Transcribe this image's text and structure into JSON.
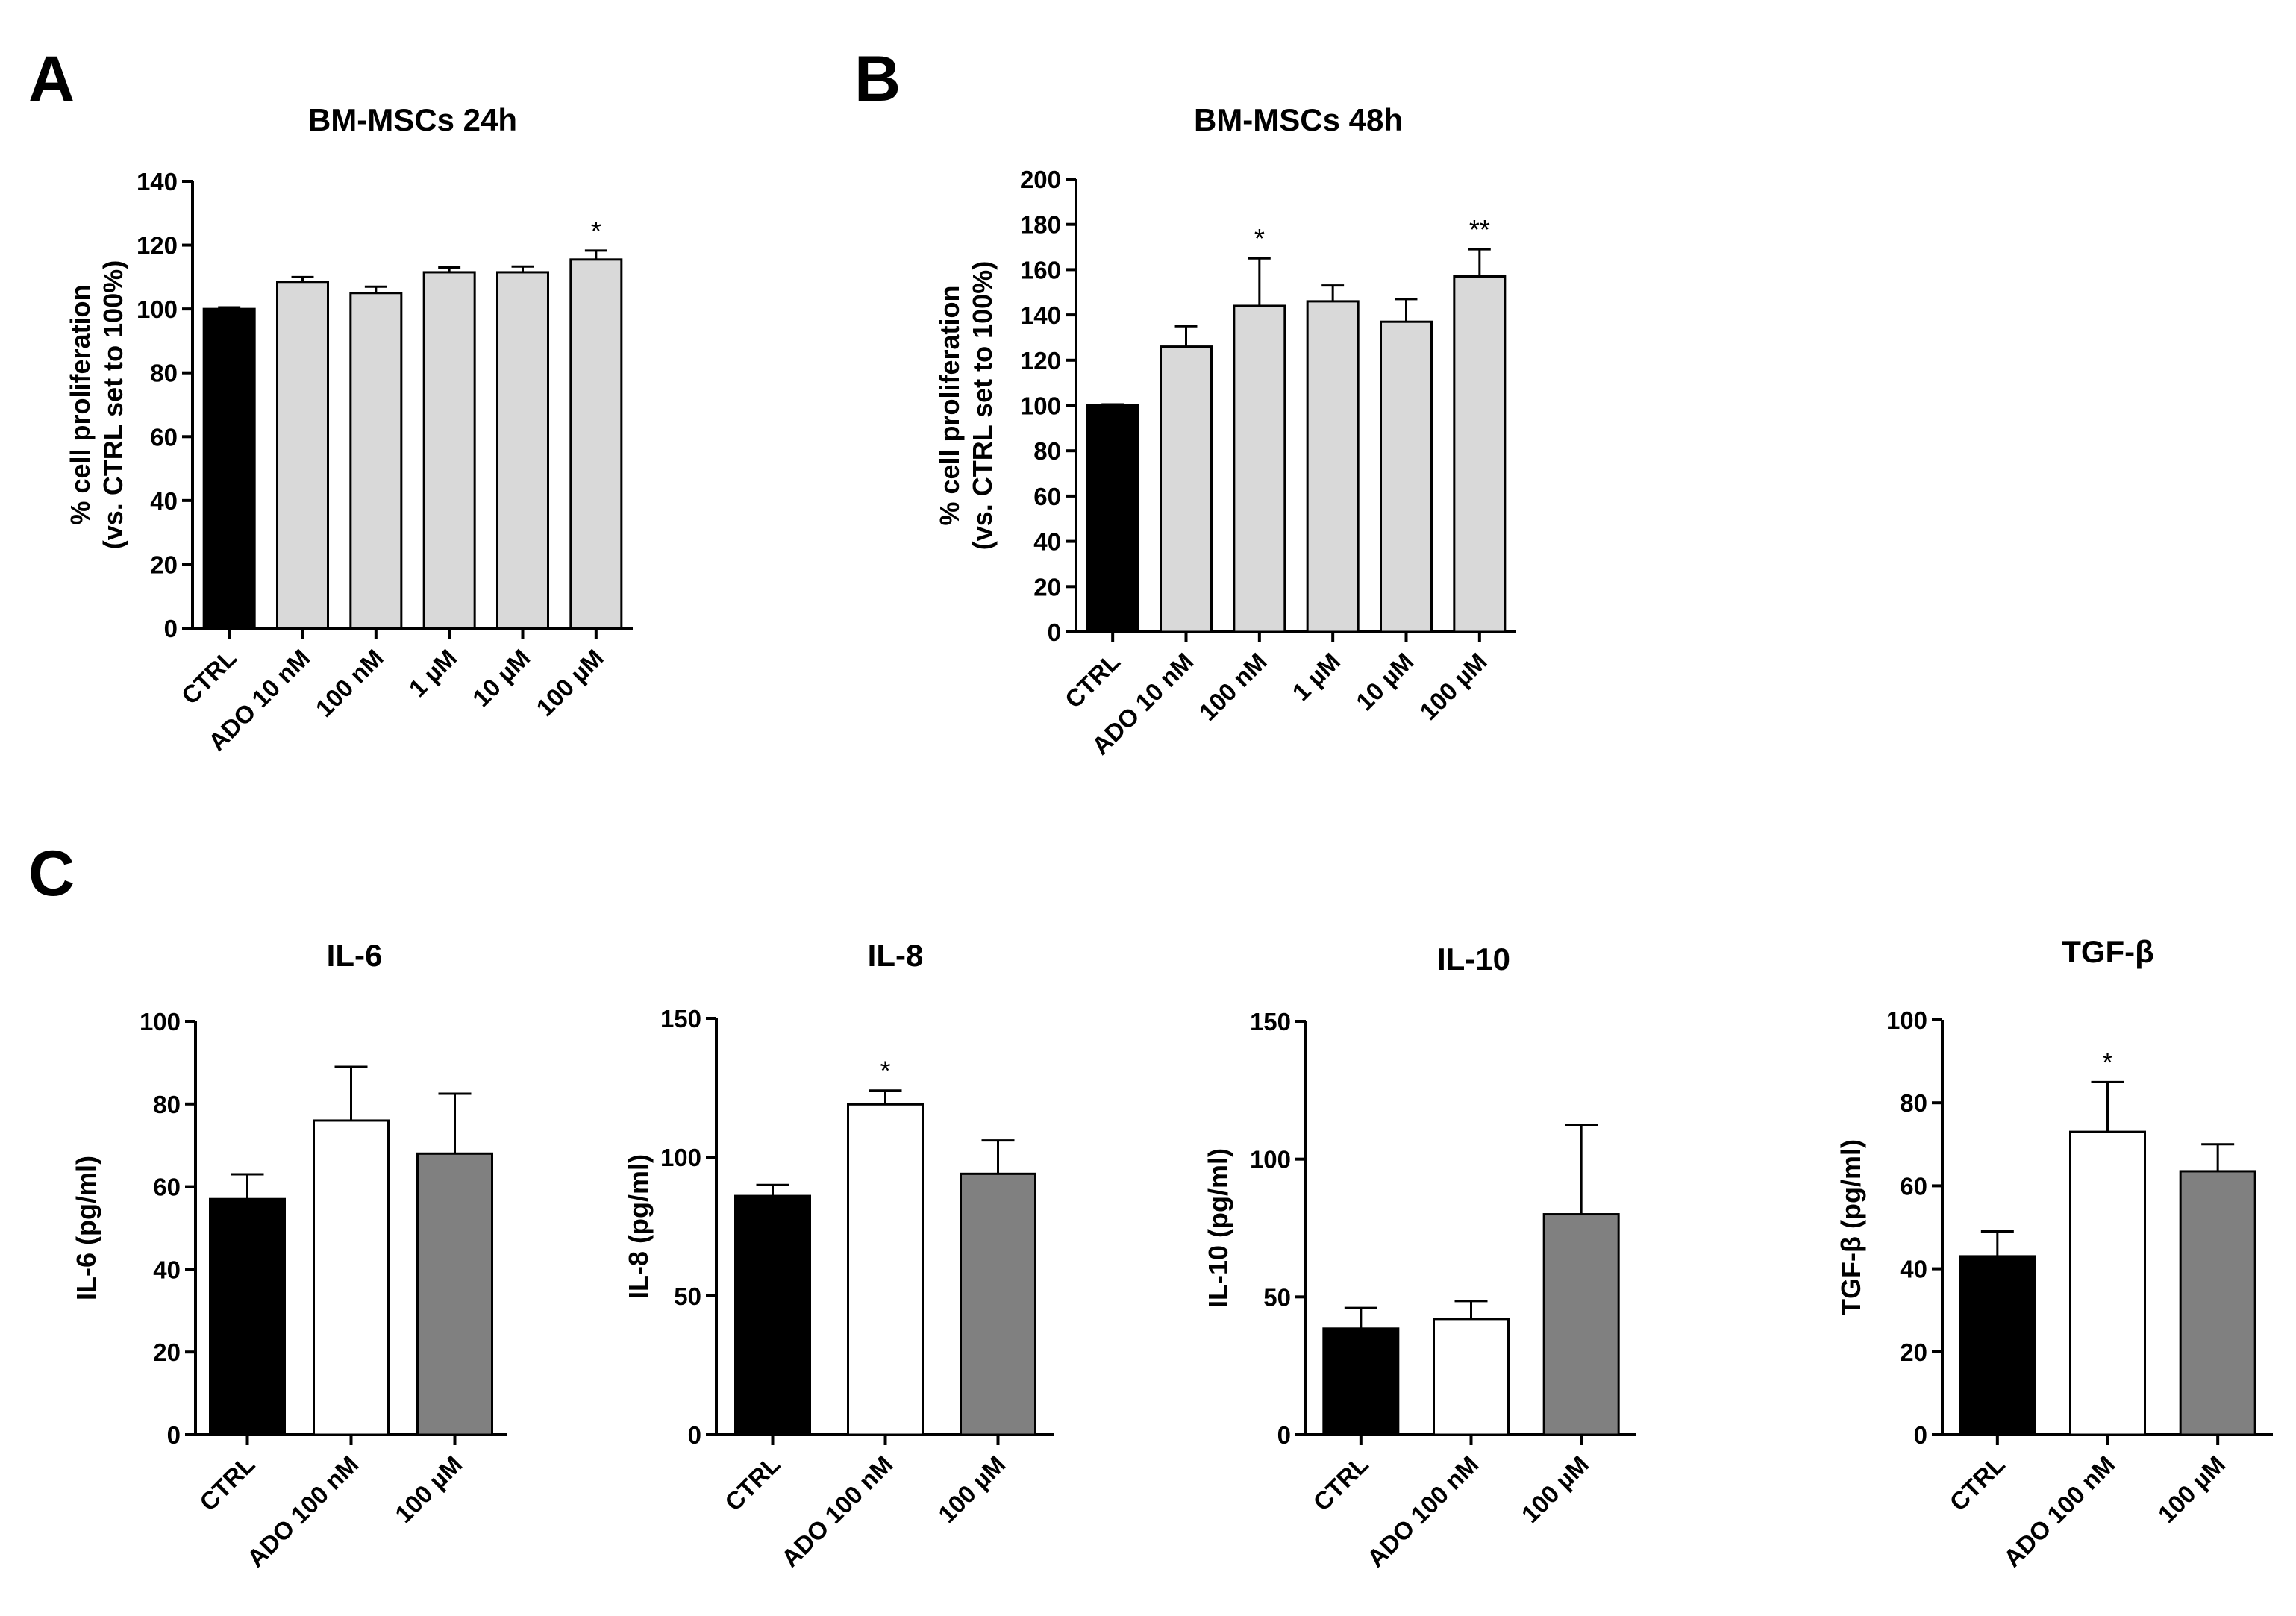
{
  "panel_labels": [
    "A",
    "B",
    "C"
  ],
  "chart_data": [
    {
      "id": "A",
      "type": "bar",
      "title": "BM-MSCs  24h",
      "ylabel_lines": [
        "% cell proliferation",
        "(vs. CTRL set to 100%)"
      ],
      "xlabel": "",
      "ylim": [
        0,
        140
      ],
      "yticks": [
        0,
        20,
        40,
        60,
        80,
        100,
        120,
        140
      ],
      "categories": [
        "CTRL",
        "ADO 10 nM",
        "100 nM",
        "1 µM",
        "10 µM",
        "100 µM"
      ],
      "values": [
        100,
        108.5,
        105,
        111.5,
        111.5,
        115.5
      ],
      "errors": [
        0.5,
        1.5,
        2.0,
        1.5,
        1.8,
        2.8
      ],
      "significance": [
        "",
        "",
        "",
        "",
        "",
        "*"
      ],
      "colors": [
        "#000000",
        "#d9d9d9",
        "#d9d9d9",
        "#d9d9d9",
        "#d9d9d9",
        "#d9d9d9"
      ]
    },
    {
      "id": "B",
      "type": "bar",
      "title": "BM-MSCs 48h",
      "ylabel_lines": [
        "% cell proliferation",
        "(vs. CTRL set to 100%)"
      ],
      "xlabel": "",
      "ylim": [
        0,
        200
      ],
      "yticks": [
        0,
        20,
        40,
        60,
        80,
        100,
        120,
        140,
        160,
        180,
        200
      ],
      "categories": [
        "CTRL",
        "ADO 10 nM",
        "100 nM",
        "1 µM",
        "10 µM",
        "100 µM"
      ],
      "values": [
        100,
        126,
        144,
        146,
        137,
        157
      ],
      "errors": [
        0.5,
        9,
        21,
        7,
        10,
        12
      ],
      "significance": [
        "",
        "",
        "*",
        "",
        "",
        "**"
      ],
      "colors": [
        "#000000",
        "#d9d9d9",
        "#d9d9d9",
        "#d9d9d9",
        "#d9d9d9",
        "#d9d9d9"
      ]
    },
    {
      "id": "IL-6",
      "type": "bar",
      "title": "IL-6",
      "ylabel_lines": [
        "IL-6 (pg/ml)"
      ],
      "xlabel": "",
      "ylim": [
        0,
        100
      ],
      "yticks": [
        0,
        20,
        40,
        60,
        80,
        100
      ],
      "categories": [
        "CTRL",
        "ADO 100 nM",
        "100 µM"
      ],
      "values": [
        57,
        76,
        68
      ],
      "errors": [
        6,
        13,
        14.5
      ],
      "significance": [
        "",
        "",
        ""
      ],
      "colors": [
        "#000000",
        "#ffffff",
        "#808080"
      ]
    },
    {
      "id": "IL-8",
      "type": "bar",
      "title": "IL-8",
      "ylabel_lines": [
        "IL-8 (pg/ml)"
      ],
      "xlabel": "",
      "ylim": [
        0,
        150
      ],
      "yticks": [
        0,
        50,
        100,
        150
      ],
      "categories": [
        "CTRL",
        "ADO 100 nM",
        "100 µM"
      ],
      "values": [
        86,
        119,
        94
      ],
      "errors": [
        4,
        5,
        12
      ],
      "significance": [
        "",
        "*",
        ""
      ],
      "colors": [
        "#000000",
        "#ffffff",
        "#808080"
      ]
    },
    {
      "id": "IL-10",
      "type": "bar",
      "title": "IL-10",
      "ylabel_lines": [
        "IL-10 (pg/ml)"
      ],
      "xlabel": "",
      "ylim": [
        0,
        150
      ],
      "yticks": [
        0,
        50,
        100,
        150
      ],
      "categories": [
        "CTRL",
        "ADO 100 nM",
        "100 µM"
      ],
      "values": [
        38.5,
        42,
        80
      ],
      "errors": [
        7.5,
        6.5,
        32.5
      ],
      "significance": [
        "",
        "",
        ""
      ],
      "colors": [
        "#000000",
        "#ffffff",
        "#808080"
      ]
    },
    {
      "id": "TGF-beta",
      "type": "bar",
      "title": "TGF-β",
      "ylabel_lines": [
        "TGF-β (pg/ml)"
      ],
      "xlabel": "",
      "ylim": [
        0,
        100
      ],
      "yticks": [
        0,
        20,
        40,
        60,
        80,
        100
      ],
      "categories": [
        "CTRL",
        "ADO 100 nM",
        "100 µM"
      ],
      "values": [
        43,
        73,
        63.5
      ],
      "errors": [
        6,
        12,
        6.5
      ],
      "significance": [
        "",
        "*",
        ""
      ],
      "colors": [
        "#000000",
        "#ffffff",
        "#808080"
      ]
    }
  ]
}
